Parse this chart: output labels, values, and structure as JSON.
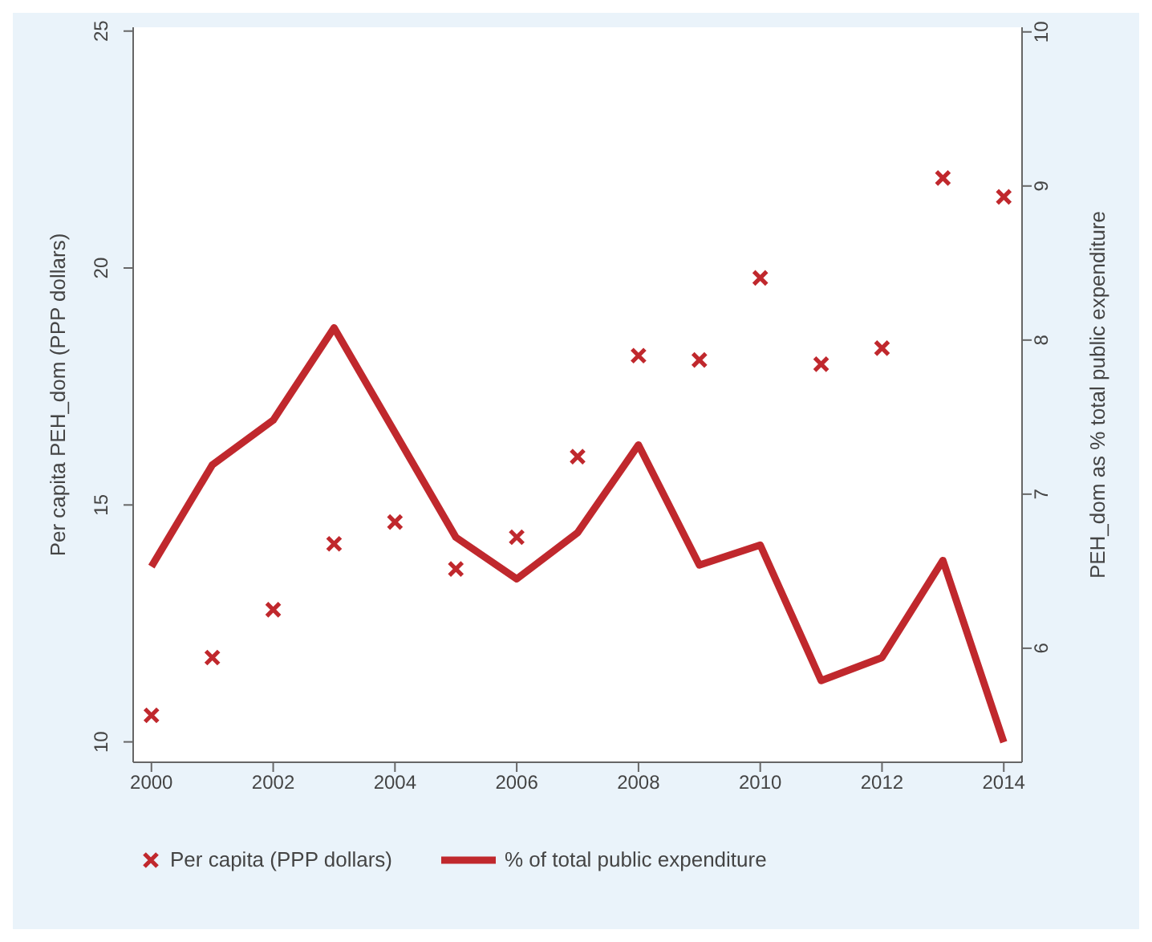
{
  "chart_data": {
    "type": "line",
    "ylabel": "Per capita PEH_dom (PPP dollars)",
    "y2label": "PEH_dom as % total public expenditure",
    "x": [
      2000,
      2001,
      2002,
      2003,
      2004,
      2005,
      2006,
      2007,
      2008,
      2009,
      2010,
      2011,
      2012,
      2013,
      2014
    ],
    "xlim": [
      1999.7,
      2014.3
    ],
    "xticks": [
      2000,
      2002,
      2004,
      2006,
      2008,
      2010,
      2012,
      2014
    ],
    "ylim": [
      9.57,
      25.08
    ],
    "yticks": [
      10,
      15,
      20,
      25
    ],
    "y2lim": [
      5.26,
      10.03
    ],
    "y2ticks": [
      6,
      7,
      8,
      9,
      10
    ],
    "series": [
      {
        "name": "Per capita (PPP dollars)",
        "type": "scatter",
        "marker": "cross",
        "color": "#c0282d",
        "values": [
          10.56,
          11.78,
          12.79,
          14.18,
          14.64,
          13.65,
          14.32,
          16.02,
          18.15,
          18.06,
          19.79,
          17.97,
          18.31,
          21.9,
          21.5
        ]
      },
      {
        "name": "% of total public expenditure",
        "axis": "y2",
        "marker": "none",
        "color": "#c0282d",
        "values": [
          6.53,
          7.19,
          7.48,
          8.08,
          7.4,
          6.72,
          6.45,
          6.75,
          7.32,
          6.54,
          6.67,
          5.79,
          5.94,
          6.57,
          5.39
        ]
      }
    ],
    "grid": false,
    "legend": "bottom left"
  }
}
